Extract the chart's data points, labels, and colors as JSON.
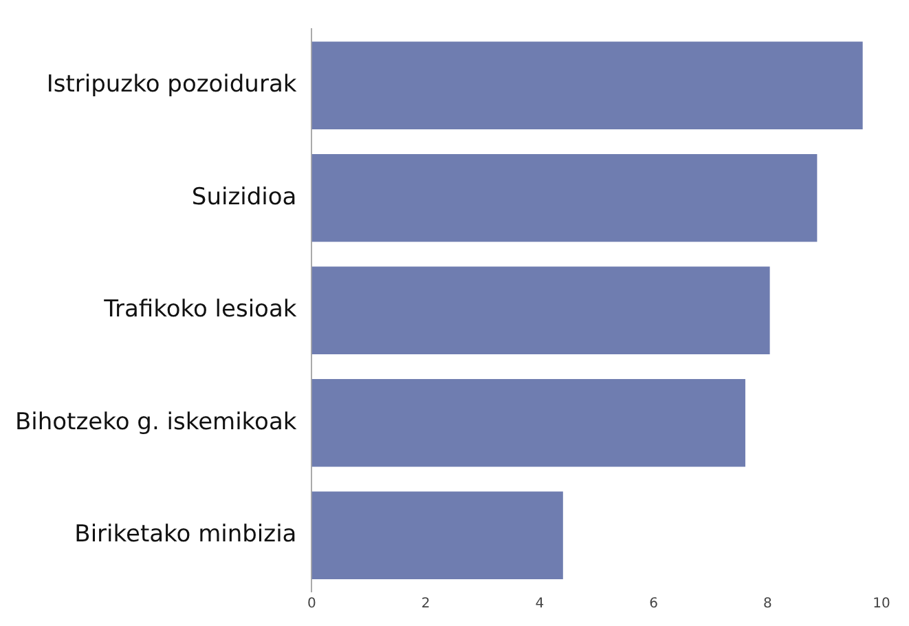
{
  "chart_data": {
    "type": "bar",
    "orientation": "horizontal",
    "categories": [
      "Istripuzko pozoidurak",
      "Suizidioa",
      "Trafikoko lesioak",
      "Bihotzeko g. iskemikoak",
      "Biriketako minbizia"
    ],
    "values": [
      9.67,
      8.87,
      8.04,
      7.61,
      4.41
    ],
    "color": "#6f7db0",
    "xlim": [
      0,
      10
    ],
    "xticks": [
      0,
      2,
      4,
      6,
      8,
      10
    ],
    "grid": false,
    "legend": false
  }
}
